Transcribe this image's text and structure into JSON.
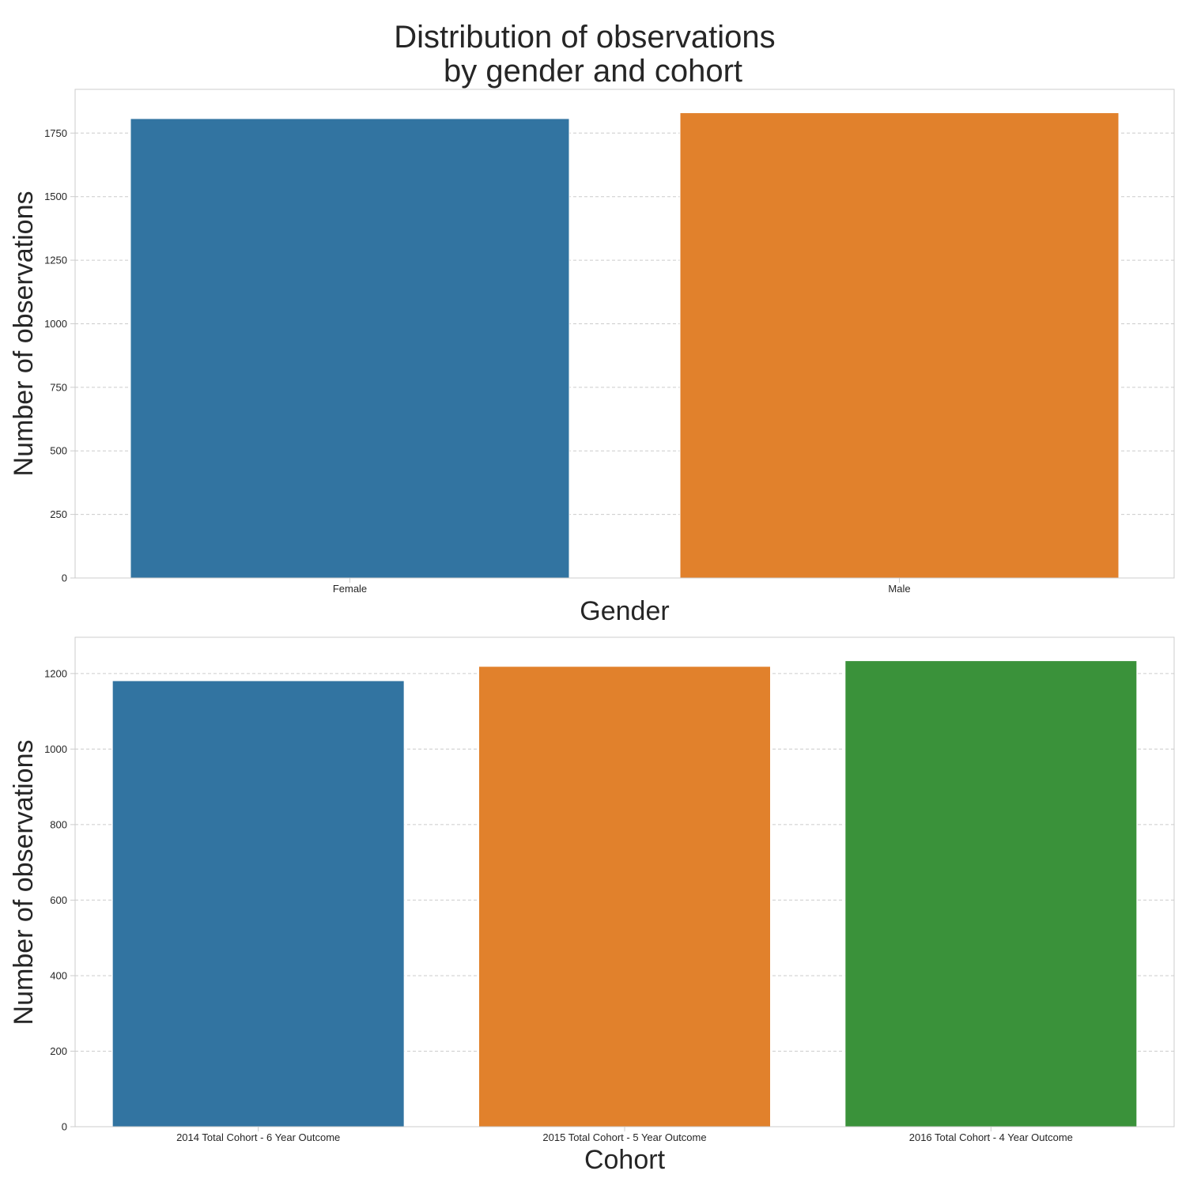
{
  "chart_data": [
    {
      "type": "bar",
      "title": "Distribution of observations\nby gender and cohort",
      "xlabel": "Gender",
      "ylabel": "Number of observations",
      "categories": [
        "Female",
        "Male"
      ],
      "values": [
        1807,
        1830
      ],
      "colors": [
        "#3274a1",
        "#e1812c"
      ],
      "yticks": [
        0,
        250,
        500,
        750,
        1000,
        1250,
        1500,
        1750
      ],
      "ylim": [
        0,
        1922
      ],
      "grid": true
    },
    {
      "type": "bar",
      "title": "",
      "xlabel": "Cohort",
      "ylabel": "Number of observations",
      "categories": [
        "2014 Total Cohort - 6 Year Outcome",
        "2015 Total Cohort - 5 Year Outcome",
        "2016 Total Cohort - 4 Year Outcome"
      ],
      "values": [
        1181,
        1219,
        1234
      ],
      "colors": [
        "#3274a1",
        "#e1812c",
        "#3a923a"
      ],
      "yticks": [
        0,
        200,
        400,
        600,
        800,
        1000,
        1200
      ],
      "ylim": [
        0,
        1296
      ],
      "grid": true
    }
  ]
}
